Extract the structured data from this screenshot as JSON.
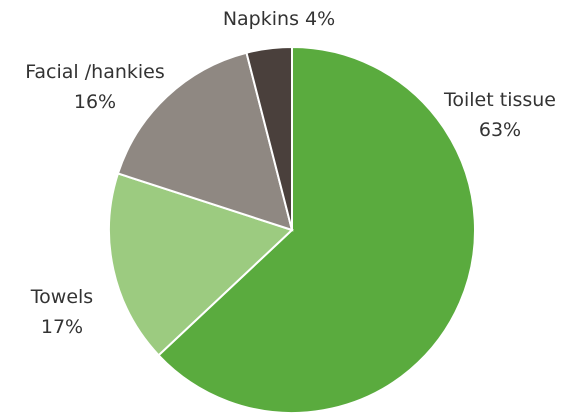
{
  "chart_data": {
    "type": "pie",
    "title": "",
    "slices": [
      {
        "name": "Toilet tissue",
        "value": 63,
        "value_label": "63%",
        "color": "#5aab3e"
      },
      {
        "name": "Towels",
        "value": 17,
        "value_label": "17%",
        "color": "#9ccb80"
      },
      {
        "name": "Facial /hankies",
        "value": 16,
        "value_label": "16%",
        "color": "#8f8882"
      },
      {
        "name": "Napkins",
        "value": 4,
        "value_label": "4%",
        "color": "#4a403c"
      }
    ],
    "start": "12 o'clock",
    "direction": "clockwise",
    "slice_border_color": "#ffffff"
  }
}
